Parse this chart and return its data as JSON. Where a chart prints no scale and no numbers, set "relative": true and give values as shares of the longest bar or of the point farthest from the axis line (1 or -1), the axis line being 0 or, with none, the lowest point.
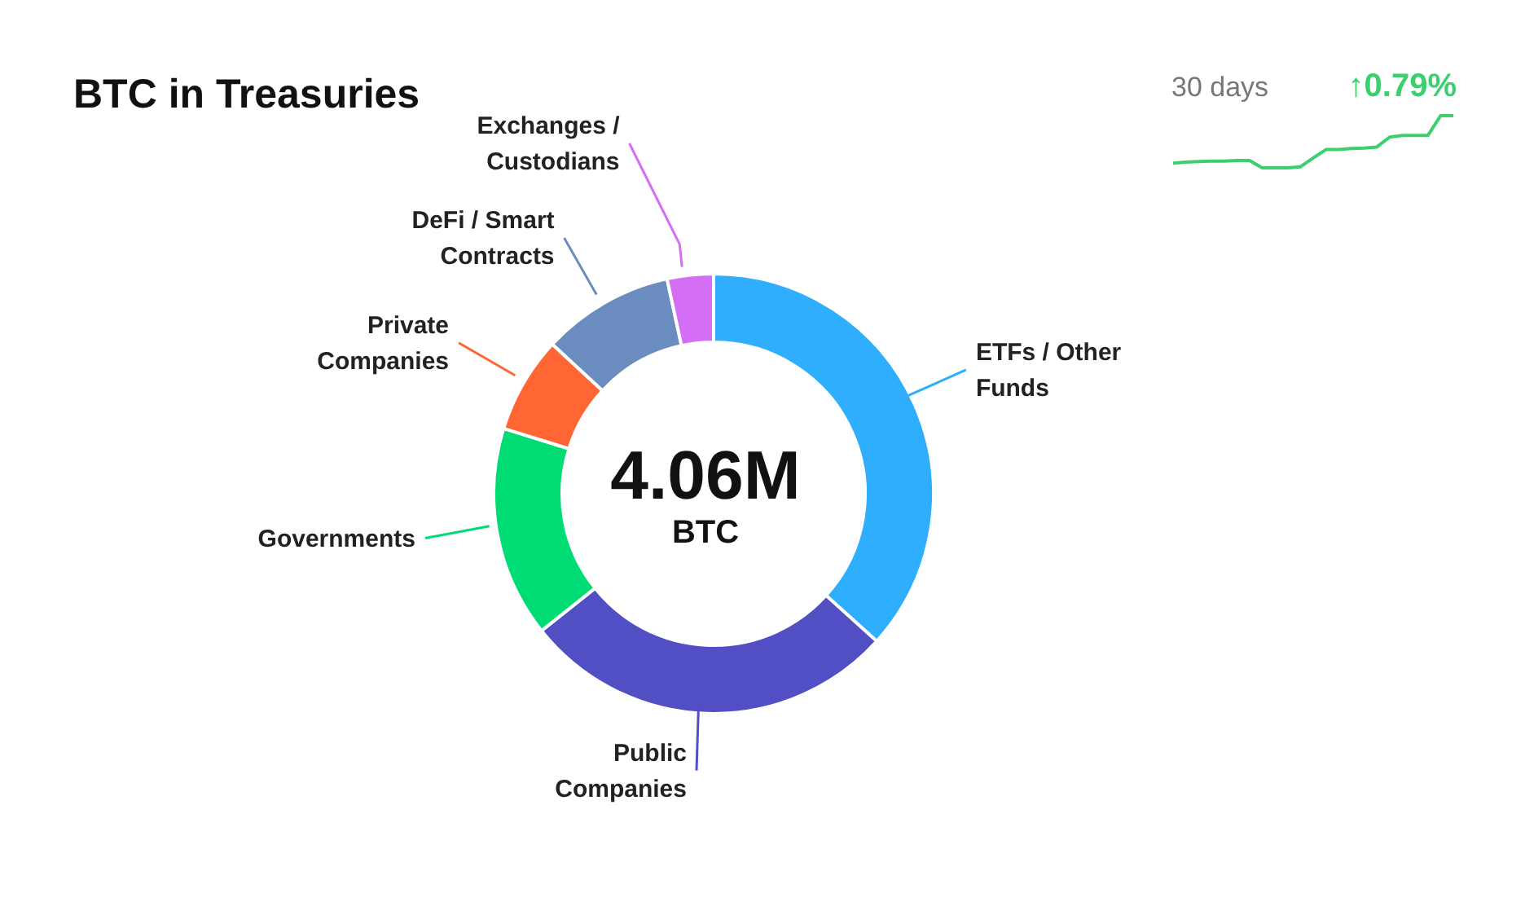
{
  "chart_data": [
    {
      "type": "donut",
      "title": "BTC in Treasuries",
      "categories": [
        "ETFs / Other Funds",
        "Public Companies",
        "Governments",
        "Private Companies",
        "DeFi / Smart Contracts",
        "Exchanges / Custodians"
      ],
      "values": [
        36.7,
        27.6,
        15.5,
        7.1,
        9.7,
        3.4
      ],
      "colors": [
        "#2eaefc",
        "#524fc4",
        "#00dc74",
        "#ff6633",
        "#6b8cbe",
        "#d36ef5"
      ],
      "annotations": [
        "4.06M",
        "BTC"
      ]
    },
    {
      "type": "line",
      "title": "30 days",
      "relative": true,
      "annotations": [
        "↑0.79%"
      ],
      "categories": [
        null,
        null,
        null,
        null,
        null,
        null,
        null,
        null,
        null,
        null,
        null,
        null,
        null,
        null,
        null,
        null,
        null,
        null,
        null,
        null,
        null,
        null,
        null
      ],
      "series": [
        {
          "color": "#3ccf6e",
          "values": [
            0.09,
            0.11,
            0.12,
            0.13,
            0.13,
            0.14,
            0.14,
            0,
            0,
            0,
            0.02,
            0.19,
            0.35,
            0.35,
            0.37,
            0.38,
            0.4,
            0.59,
            0.62,
            0.62,
            0.62,
            1,
            1
          ]
        }
      ]
    }
  ]
}
